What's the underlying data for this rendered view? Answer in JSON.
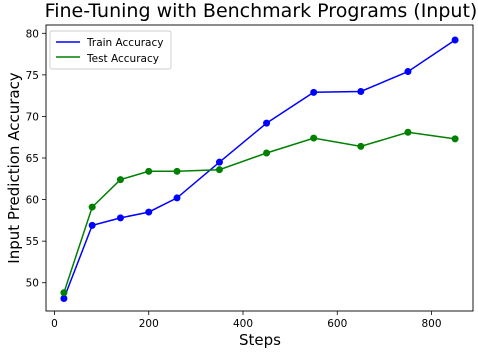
{
  "chart_data": {
    "type": "line",
    "title": "Fine-Tuning with Benchmark Programs (Input)",
    "xlabel": "Steps",
    "ylabel": "Input Prediction Accuracy",
    "xlim": [
      -18,
      888
    ],
    "ylim": [
      46.6,
      81.0
    ],
    "xticks": [
      0,
      200,
      400,
      600,
      800
    ],
    "yticks": [
      50,
      55,
      60,
      65,
      70,
      75,
      80
    ],
    "grid": false,
    "legend_position": "top-left",
    "x": [
      20,
      80,
      140,
      200,
      260,
      350,
      450,
      550,
      650,
      750,
      850
    ],
    "series": [
      {
        "name": "Train Accuracy",
        "color": "#0000ff",
        "marker": "circle",
        "values": [
          48.1,
          56.9,
          57.8,
          58.5,
          60.2,
          64.5,
          69.2,
          72.9,
          73.0,
          75.4,
          79.2
        ]
      },
      {
        "name": "Test Accuracy",
        "color": "#008000",
        "marker": "circle",
        "values": [
          48.8,
          59.1,
          62.4,
          63.4,
          63.4,
          63.6,
          65.6,
          67.4,
          66.4,
          68.1,
          67.3
        ]
      }
    ]
  }
}
